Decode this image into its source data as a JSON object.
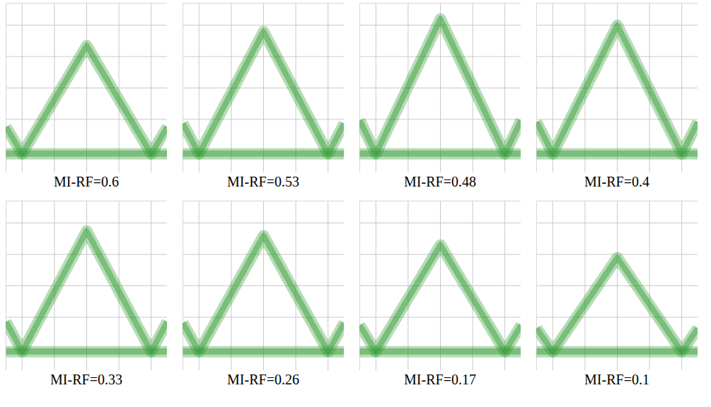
{
  "chart_data": [
    {
      "type": "line",
      "title": "MI-RF=0.6",
      "x": [
        -2.5,
        -2,
        0,
        2,
        2.5
      ],
      "series": [
        {
          "values": [
            -1.24,
            -2.1,
            1.35,
            -2.1,
            -1.24
          ]
        },
        {
          "values": [
            -2.1,
            -2.1,
            -2.1,
            -2.1,
            -2.1
          ]
        }
      ],
      "color": "#2f9a2f",
      "xlim": [
        -2.5,
        2.5
      ],
      "ylim": [
        -2.7,
        2.7
      ],
      "xticks": [
        -2,
        -1,
        0,
        1,
        2
      ],
      "yticks": [
        -2,
        -1,
        0,
        1,
        2
      ],
      "grid": true,
      "tick_labels": false
    },
    {
      "type": "line",
      "title": "MI-RF=0.53",
      "x": [
        -2.5,
        -2,
        0,
        2,
        2.5
      ],
      "series": [
        {
          "values": [
            -1.13,
            -2.1,
            1.8,
            -2.1,
            -1.13
          ]
        },
        {
          "values": [
            -2.1,
            -2.1,
            -2.1,
            -2.1,
            -2.1
          ]
        }
      ],
      "color": "#2f9a2f",
      "xlim": [
        -2.5,
        2.5
      ],
      "ylim": [
        -2.7,
        2.7
      ],
      "xticks": [
        -2,
        -1,
        0,
        1,
        2
      ],
      "yticks": [
        -2,
        -1,
        0,
        1,
        2
      ],
      "grid": true,
      "tick_labels": false
    },
    {
      "type": "line",
      "title": "MI-RF=0.48",
      "x": [
        -2.5,
        -2,
        0,
        2,
        2.5
      ],
      "series": [
        {
          "values": [
            -1.03,
            -2.1,
            2.2,
            -2.1,
            -1.03
          ]
        },
        {
          "values": [
            -2.1,
            -2.1,
            -2.1,
            -2.1,
            -2.1
          ]
        }
      ],
      "color": "#2f9a2f",
      "xlim": [
        -2.5,
        2.5
      ],
      "ylim": [
        -2.7,
        2.7
      ],
      "xticks": [
        -2,
        -1,
        0,
        1,
        2
      ],
      "yticks": [
        -2,
        -1,
        0,
        1,
        2
      ],
      "grid": true,
      "tick_labels": false
    },
    {
      "type": "line",
      "title": "MI-RF=0.4",
      "x": [
        -2.5,
        -2,
        0,
        2,
        2.5
      ],
      "series": [
        {
          "values": [
            -1.08,
            -2.1,
            2.0,
            -2.1,
            -1.08
          ]
        },
        {
          "values": [
            -2.1,
            -2.1,
            -2.1,
            -2.1,
            -2.1
          ]
        }
      ],
      "color": "#2f9a2f",
      "xlim": [
        -2.5,
        2.5
      ],
      "ylim": [
        -2.7,
        2.7
      ],
      "xticks": [
        -2,
        -1,
        0,
        1,
        2
      ],
      "yticks": [
        -2,
        -1,
        0,
        1,
        2
      ],
      "grid": true,
      "tick_labels": false
    },
    {
      "type": "line",
      "title": "MI-RF=0.33",
      "x": [
        -2.5,
        -2,
        0,
        2,
        2.5
      ],
      "series": [
        {
          "values": [
            -1.14,
            -2.1,
            1.75,
            -2.1,
            -1.14
          ]
        },
        {
          "values": [
            -2.1,
            -2.1,
            -2.1,
            -2.1,
            -2.1
          ]
        }
      ],
      "color": "#2f9a2f",
      "xlim": [
        -2.5,
        2.5
      ],
      "ylim": [
        -2.7,
        2.7
      ],
      "xticks": [
        -2,
        -1,
        0,
        1,
        2
      ],
      "yticks": [
        -2,
        -1,
        0,
        1,
        2
      ],
      "grid": true,
      "tick_labels": false
    },
    {
      "type": "line",
      "title": "MI-RF=0.26",
      "x": [
        -2.5,
        -2,
        0,
        2,
        2.5
      ],
      "series": [
        {
          "values": [
            -1.18,
            -2.1,
            1.6,
            -2.1,
            -1.18
          ]
        },
        {
          "values": [
            -2.1,
            -2.1,
            -2.1,
            -2.1,
            -2.1
          ]
        }
      ],
      "color": "#2f9a2f",
      "xlim": [
        -2.5,
        2.5
      ],
      "ylim": [
        -2.7,
        2.7
      ],
      "xticks": [
        -2,
        -1,
        0,
        1,
        2
      ],
      "yticks": [
        -2,
        -1,
        0,
        1,
        2
      ],
      "grid": true,
      "tick_labels": false
    },
    {
      "type": "line",
      "title": "MI-RF=0.17",
      "x": [
        -2.5,
        -2,
        0,
        2,
        2.5
      ],
      "series": [
        {
          "values": [
            -1.25,
            -2.1,
            1.3,
            -2.1,
            -1.25
          ]
        },
        {
          "values": [
            -2.1,
            -2.1,
            -2.1,
            -2.1,
            -2.1
          ]
        }
      ],
      "color": "#2f9a2f",
      "xlim": [
        -2.5,
        2.5
      ],
      "ylim": [
        -2.7,
        2.7
      ],
      "xticks": [
        -2,
        -1,
        0,
        1,
        2
      ],
      "yticks": [
        -2,
        -1,
        0,
        1,
        2
      ],
      "grid": true,
      "tick_labels": false
    },
    {
      "type": "line",
      "title": "MI-RF=0.1",
      "x": [
        -2.5,
        -2,
        0,
        2,
        2.5
      ],
      "series": [
        {
          "values": [
            -1.35,
            -2.1,
            0.9,
            -2.1,
            -1.35
          ]
        },
        {
          "values": [
            -2.1,
            -2.1,
            -2.1,
            -2.1,
            -2.1
          ]
        }
      ],
      "color": "#2f9a2f",
      "xlim": [
        -2.5,
        2.5
      ],
      "ylim": [
        -2.7,
        2.7
      ],
      "xticks": [
        -2,
        -1,
        0,
        1,
        2
      ],
      "yticks": [
        -2,
        -1,
        0,
        1,
        2
      ],
      "grid": true,
      "tick_labels": false
    }
  ]
}
